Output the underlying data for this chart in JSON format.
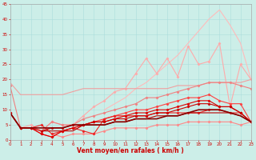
{
  "x": [
    0,
    1,
    2,
    3,
    4,
    5,
    6,
    7,
    8,
    9,
    10,
    11,
    12,
    13,
    14,
    15,
    16,
    17,
    18,
    19,
    20,
    21,
    22,
    23
  ],
  "series": [
    {
      "y": [
        null,
        null,
        null,
        null,
        null,
        null,
        null,
        null,
        null,
        10,
        12,
        14,
        17,
        19,
        22,
        25,
        28,
        32,
        36,
        40,
        43,
        38,
        32,
        20
      ],
      "color": "#ffbbbb",
      "marker": null,
      "lw": 0.8
    },
    {
      "y": [
        null,
        4,
        5,
        3,
        6,
        5,
        5,
        8,
        11,
        13,
        16,
        17,
        22,
        27,
        22,
        27,
        21,
        31,
        25,
        26,
        32,
        11,
        25,
        20
      ],
      "color": "#ffaaaa",
      "marker": "D",
      "lw": 0.8,
      "ms": 1.5
    },
    {
      "y": [
        19,
        15,
        15,
        15,
        15,
        15,
        16,
        17,
        17,
        17,
        17,
        17,
        17,
        17,
        17,
        17,
        18,
        18,
        18,
        19,
        19,
        19,
        19,
        20
      ],
      "color": "#f0a0a0",
      "marker": null,
      "lw": 0.8
    },
    {
      "y": [
        18,
        4,
        4,
        3,
        6,
        5,
        5,
        7,
        8,
        9,
        10,
        11,
        12,
        14,
        14,
        15,
        16,
        17,
        18,
        19,
        19,
        19,
        18,
        17
      ],
      "color": "#f08080",
      "marker": "D",
      "lw": 0.8,
      "ms": 1.5
    },
    {
      "y": [
        null,
        null,
        null,
        null,
        2,
        1,
        2,
        2,
        2,
        3,
        4,
        4,
        4,
        4,
        5,
        5,
        5,
        6,
        6,
        6,
        6,
        6,
        5,
        6
      ],
      "color": "#ff8888",
      "marker": "D",
      "lw": 0.8,
      "ms": 1.5
    },
    {
      "y": [
        9,
        4,
        4,
        2,
        1,
        3,
        4,
        5,
        6,
        7,
        8,
        9,
        10,
        10,
        11,
        12,
        13,
        14,
        14,
        15,
        13,
        12,
        12,
        6
      ],
      "color": "#ff4040",
      "marker": "D",
      "lw": 0.8,
      "ms": 1.5
    },
    {
      "y": [
        null,
        null,
        4,
        5,
        2,
        3,
        4,
        3,
        2,
        7,
        8,
        8,
        8,
        8,
        9,
        9,
        9,
        9,
        9,
        10,
        10,
        9,
        9,
        6
      ],
      "color": "#ee2222",
      "marker": "D",
      "lw": 0.8,
      "ms": 1.5
    },
    {
      "y": [
        9,
        4,
        4,
        2,
        1,
        3,
        4,
        5,
        6,
        6,
        7,
        8,
        9,
        9,
        10,
        10,
        11,
        12,
        13,
        13,
        11,
        11,
        9,
        6
      ],
      "color": "#dd0000",
      "marker": "D",
      "lw": 0.8,
      "ms": 1.5
    },
    {
      "y": [
        9,
        4,
        4,
        3,
        4,
        4,
        5,
        5,
        6,
        6,
        7,
        7,
        8,
        8,
        9,
        9,
        10,
        11,
        12,
        12,
        11,
        11,
        9,
        6
      ],
      "color": "#cc0000",
      "marker": "D",
      "lw": 0.8,
      "ms": 1.5
    },
    {
      "y": [
        null,
        null,
        null,
        3,
        3,
        3,
        3,
        5,
        5,
        5,
        6,
        6,
        7,
        7,
        8,
        8,
        8,
        9,
        9,
        9,
        9,
        9,
        8,
        6
      ],
      "color": "#bb0000",
      "marker": null,
      "lw": 0.8
    },
    {
      "y": [
        9,
        4,
        4,
        4,
        4,
        4,
        5,
        5,
        5,
        5,
        6,
        6,
        7,
        7,
        7,
        8,
        8,
        9,
        10,
        10,
        10,
        9,
        8,
        6
      ],
      "color": "#880000",
      "marker": null,
      "lw": 1.2
    }
  ],
  "xlabel": "Vent moyen/en rafales ( km/h )",
  "xlim": [
    0,
    23
  ],
  "ylim": [
    0,
    45
  ],
  "yticks": [
    0,
    5,
    10,
    15,
    20,
    25,
    30,
    35,
    40,
    45
  ],
  "xticks": [
    0,
    1,
    2,
    3,
    4,
    5,
    6,
    7,
    8,
    9,
    10,
    11,
    12,
    13,
    14,
    15,
    16,
    17,
    18,
    19,
    20,
    21,
    22,
    23
  ],
  "bg_color": "#cceee8",
  "grid_color": "#aadddd",
  "tick_color": "#cc0000",
  "label_color": "#cc0000"
}
